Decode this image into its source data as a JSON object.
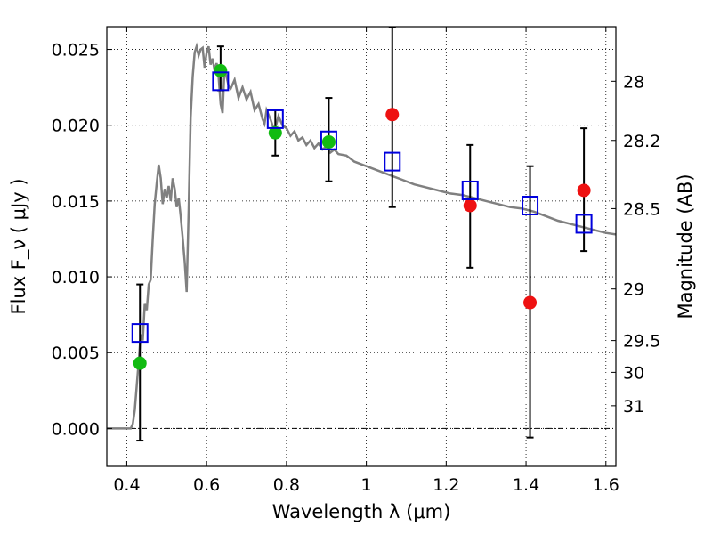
{
  "chart_data": {
    "type": "scatter",
    "xlabel": "Wavelength  λ (μm)",
    "ylabel": "Flux  F_ν  ( μJy )",
    "y2label": "Magnitude (AB)",
    "xlim": [
      0.35,
      1.625
    ],
    "ylim": [
      -0.0025,
      0.0265
    ],
    "grid": true,
    "x_ticks": [
      {
        "value": 0.4,
        "label": "0.4"
      },
      {
        "value": 0.6,
        "label": "0.6"
      },
      {
        "value": 0.8,
        "label": "0.8"
      },
      {
        "value": 1.0,
        "label": "1"
      },
      {
        "value": 1.2,
        "label": "1.2"
      },
      {
        "value": 1.4,
        "label": "1.4"
      },
      {
        "value": 1.6,
        "label": "1.6"
      }
    ],
    "y_ticks": [
      {
        "value": 0.0,
        "label": "0.000"
      },
      {
        "value": 0.005,
        "label": "0.005"
      },
      {
        "value": 0.01,
        "label": "0.010"
      },
      {
        "value": 0.015,
        "label": "0.015"
      },
      {
        "value": 0.02,
        "label": "0.020"
      },
      {
        "value": 0.025,
        "label": "0.025"
      }
    ],
    "y2_ticks": [
      {
        "flux": 0.0229,
        "label": "28"
      },
      {
        "flux": 0.019,
        "label": "28.2"
      },
      {
        "flux": 0.0145,
        "label": "28.5"
      },
      {
        "flux": 0.0092,
        "label": "29"
      },
      {
        "flux": 0.0058,
        "label": "29.5"
      },
      {
        "flux": 0.0037,
        "label": "30"
      },
      {
        "flux": 0.0015,
        "label": "31"
      }
    ],
    "model_sed": {
      "color": "#808080",
      "points": [
        [
          0.35,
          0.0
        ],
        [
          0.41,
          0.0
        ],
        [
          0.415,
          0.0003
        ],
        [
          0.42,
          0.0012
        ],
        [
          0.425,
          0.0028
        ],
        [
          0.43,
          0.0045
        ],
        [
          0.435,
          0.0062
        ],
        [
          0.44,
          0.0058
        ],
        [
          0.445,
          0.0082
        ],
        [
          0.45,
          0.0078
        ],
        [
          0.455,
          0.0095
        ],
        [
          0.46,
          0.0098
        ],
        [
          0.465,
          0.0125
        ],
        [
          0.47,
          0.0148
        ],
        [
          0.475,
          0.0162
        ],
        [
          0.48,
          0.0174
        ],
        [
          0.485,
          0.0165
        ],
        [
          0.49,
          0.0148
        ],
        [
          0.495,
          0.0158
        ],
        [
          0.5,
          0.0152
        ],
        [
          0.505,
          0.016
        ],
        [
          0.51,
          0.015
        ],
        [
          0.515,
          0.0165
        ],
        [
          0.52,
          0.0158
        ],
        [
          0.525,
          0.0146
        ],
        [
          0.53,
          0.0152
        ],
        [
          0.535,
          0.014
        ],
        [
          0.54,
          0.0126
        ],
        [
          0.545,
          0.011
        ],
        [
          0.55,
          0.009
        ],
        [
          0.555,
          0.0145
        ],
        [
          0.56,
          0.0205
        ],
        [
          0.565,
          0.0232
        ],
        [
          0.57,
          0.0248
        ],
        [
          0.575,
          0.0252
        ],
        [
          0.58,
          0.0246
        ],
        [
          0.585,
          0.025
        ],
        [
          0.59,
          0.0251
        ],
        [
          0.595,
          0.0238
        ],
        [
          0.6,
          0.0248
        ],
        [
          0.605,
          0.0252
        ],
        [
          0.61,
          0.024
        ],
        [
          0.615,
          0.0244
        ],
        [
          0.62,
          0.0236
        ],
        [
          0.625,
          0.0241
        ],
        [
          0.63,
          0.0232
        ],
        [
          0.635,
          0.0214
        ],
        [
          0.64,
          0.0208
        ],
        [
          0.645,
          0.0238
        ],
        [
          0.65,
          0.0232
        ],
        [
          0.655,
          0.0226
        ],
        [
          0.66,
          0.0224
        ],
        [
          0.67,
          0.023
        ],
        [
          0.68,
          0.0218
        ],
        [
          0.69,
          0.0225
        ],
        [
          0.7,
          0.0217
        ],
        [
          0.71,
          0.0222
        ],
        [
          0.72,
          0.021
        ],
        [
          0.73,
          0.0214
        ],
        [
          0.74,
          0.0204
        ],
        [
          0.745,
          0.0201
        ],
        [
          0.75,
          0.021
        ],
        [
          0.76,
          0.0204
        ],
        [
          0.77,
          0.0196
        ],
        [
          0.78,
          0.0206
        ],
        [
          0.79,
          0.02
        ],
        [
          0.8,
          0.0198
        ],
        [
          0.81,
          0.0193
        ],
        [
          0.82,
          0.0196
        ],
        [
          0.83,
          0.019
        ],
        [
          0.84,
          0.0192
        ],
        [
          0.85,
          0.0187
        ],
        [
          0.86,
          0.019
        ],
        [
          0.87,
          0.0185
        ],
        [
          0.88,
          0.0188
        ],
        [
          0.89,
          0.0184
        ],
        [
          0.9,
          0.0186
        ],
        [
          0.91,
          0.0182
        ],
        [
          0.92,
          0.0184
        ],
        [
          0.93,
          0.0181
        ],
        [
          0.95,
          0.018
        ],
        [
          0.97,
          0.0176
        ],
        [
          1.0,
          0.0173
        ],
        [
          1.03,
          0.017
        ],
        [
          1.06,
          0.0167
        ],
        [
          1.09,
          0.0164
        ],
        [
          1.12,
          0.0161
        ],
        [
          1.15,
          0.0159
        ],
        [
          1.18,
          0.0157
        ],
        [
          1.21,
          0.0155
        ],
        [
          1.24,
          0.0154
        ],
        [
          1.27,
          0.0152
        ],
        [
          1.3,
          0.015
        ],
        [
          1.33,
          0.0148
        ],
        [
          1.36,
          0.0146
        ],
        [
          1.39,
          0.0145
        ],
        [
          1.42,
          0.0143
        ],
        [
          1.45,
          0.014
        ],
        [
          1.48,
          0.0137
        ],
        [
          1.51,
          0.0135
        ],
        [
          1.54,
          0.0133
        ],
        [
          1.57,
          0.0131
        ],
        [
          1.6,
          0.0129
        ],
        [
          1.625,
          0.0128
        ]
      ]
    },
    "series": [
      {
        "marker": "filled-circle",
        "color": "#ee1111",
        "points": [
          {
            "x": 1.065,
            "y": 0.0207
          },
          {
            "x": 1.26,
            "y": 0.0147
          },
          {
            "x": 1.41,
            "y": 0.0083
          },
          {
            "x": 1.545,
            "y": 0.0157
          }
        ]
      },
      {
        "marker": "filled-circle",
        "color": "#11bb11",
        "points": [
          {
            "x": 0.433,
            "y": 0.0043
          },
          {
            "x": 0.635,
            "y": 0.0236
          },
          {
            "x": 0.772,
            "y": 0.0195
          },
          {
            "x": 0.906,
            "y": 0.0189
          }
        ]
      },
      {
        "marker": "open-square",
        "color": "#0000dd",
        "points": [
          {
            "x": 0.433,
            "y": 0.0063
          },
          {
            "x": 0.635,
            "y": 0.0229
          },
          {
            "x": 0.772,
            "y": 0.0204
          },
          {
            "x": 0.906,
            "y": 0.019
          },
          {
            "x": 1.065,
            "y": 0.0176
          },
          {
            "x": 1.26,
            "y": 0.0157
          },
          {
            "x": 1.41,
            "y": 0.0147
          },
          {
            "x": 1.545,
            "y": 0.0135
          }
        ]
      }
    ],
    "error_bars": [
      {
        "x": 0.433,
        "low": -0.0008,
        "high": 0.0095
      },
      {
        "x": 0.635,
        "low": 0.0223,
        "high": 0.0252
      },
      {
        "x": 0.772,
        "low": 0.018,
        "high": 0.021
      },
      {
        "x": 0.906,
        "low": 0.0163,
        "high": 0.0218
      },
      {
        "x": 1.065,
        "low": 0.0146,
        "high": 0.0265
      },
      {
        "x": 1.26,
        "low": 0.0106,
        "high": 0.0187
      },
      {
        "x": 1.41,
        "low": -0.0006,
        "high": 0.0173
      },
      {
        "x": 1.545,
        "low": 0.0117,
        "high": 0.0198
      }
    ]
  }
}
